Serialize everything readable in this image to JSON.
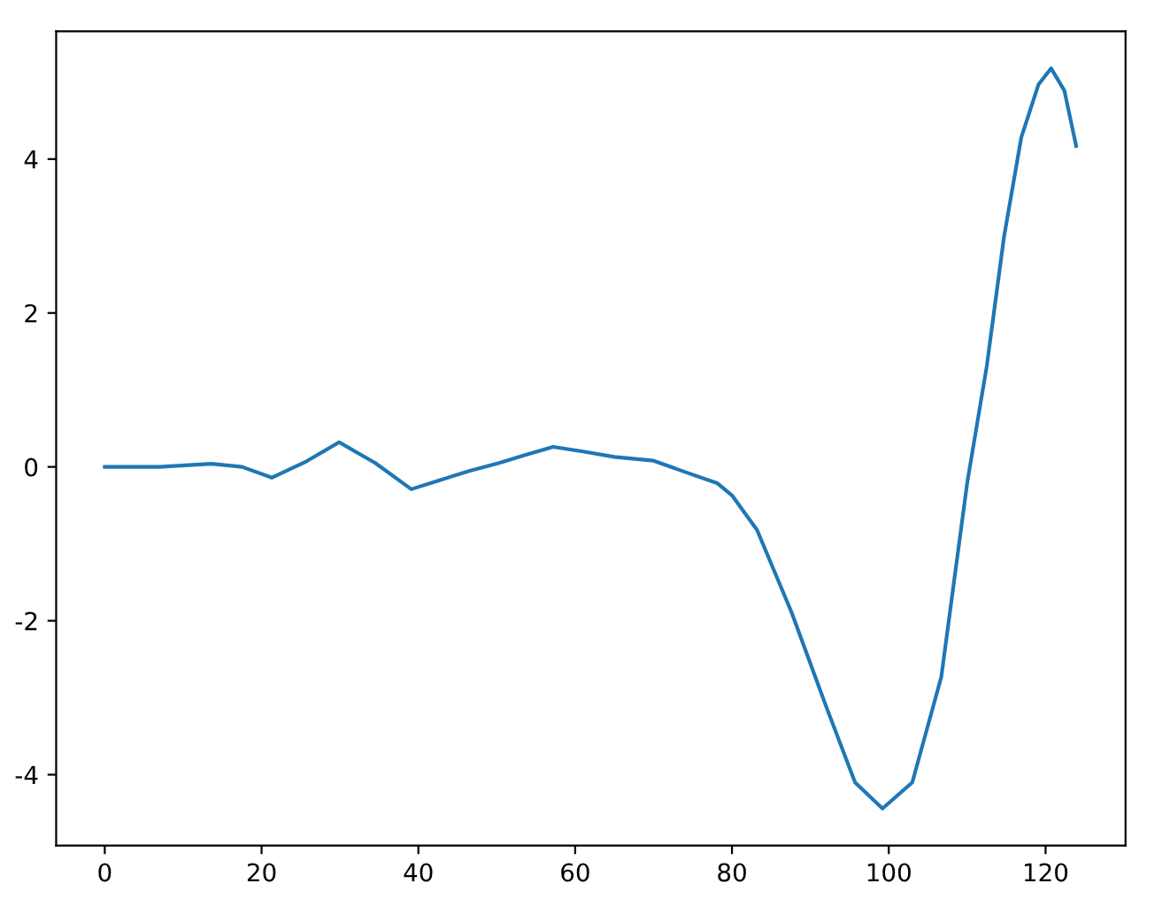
{
  "chart_data": {
    "type": "line",
    "x": [
      0,
      7,
      13.6,
      17.5,
      21.3,
      25.5,
      29.9,
      34.5,
      39.1,
      42.8,
      46.6,
      50.3,
      53.8,
      57.2,
      61,
      65,
      70,
      74.4,
      78.1,
      80,
      83.2,
      87.6,
      92,
      95.7,
      99.2,
      103,
      106.7,
      110,
      112.5,
      114.7,
      116.9,
      119.1,
      120.7,
      122.4,
      123.9
    ],
    "series": [
      {
        "color": "#1f77b4",
        "values": [
          0,
          0,
          0.04,
          0,
          -0.14,
          0.06,
          0.32,
          0.05,
          -0.29,
          -0.17,
          -0.05,
          0.05,
          0.16,
          0.26,
          0.2,
          0.13,
          0.08,
          -0.08,
          -0.21,
          -0.37,
          -0.82,
          -1.89,
          -3.11,
          -4.1,
          -4.44,
          -4.1,
          -2.73,
          -0.21,
          1.31,
          2.99,
          4.28,
          4.97,
          5.18,
          4.89,
          4.17
        ]
      }
    ],
    "xlim": [
      -6.2,
      130.2
    ],
    "ylim": [
      -4.92,
      5.66
    ],
    "xticks": [
      0,
      20,
      40,
      60,
      80,
      100,
      120
    ],
    "yticks": [
      -4,
      -2,
      0,
      2,
      4
    ],
    "grid": false,
    "legend": false
  }
}
